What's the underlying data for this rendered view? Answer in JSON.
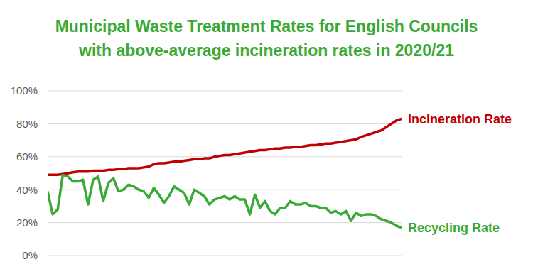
{
  "chart_data": {
    "type": "line",
    "title": "Municipal Waste Treatment Rates for English Councils\nwith above-average incineration rates in 2020/21",
    "categories": [
      null,
      null,
      null,
      null,
      null,
      null,
      null,
      null,
      null,
      null,
      null,
      null,
      null,
      null,
      null,
      null,
      null,
      null,
      null,
      null,
      null,
      null,
      null,
      null,
      null,
      null,
      null,
      null,
      null,
      null,
      null,
      null,
      null,
      null,
      null,
      null,
      null,
      null,
      null,
      null,
      null,
      null,
      null,
      null,
      null,
      null,
      null,
      null,
      null,
      null,
      null,
      null,
      null,
      null,
      null,
      null,
      null,
      null,
      null,
      null,
      null,
      null,
      null,
      null,
      null,
      null,
      null,
      null,
      null,
      null,
      null
    ],
    "series": [
      {
        "name": "Incineration Rate",
        "color": "#c00000",
        "values": [
          49,
          49,
          49,
          49.5,
          50,
          50.5,
          51,
          51,
          51,
          51.5,
          51.5,
          51.5,
          52,
          52,
          52.5,
          52.5,
          53,
          53,
          53,
          53.5,
          54,
          55.5,
          56,
          56,
          56.5,
          57,
          57,
          57.5,
          58,
          58.5,
          58.5,
          59,
          59,
          60,
          60.5,
          61,
          61,
          61.5,
          62,
          62.5,
          63,
          63.5,
          64,
          64,
          64.5,
          65,
          65,
          65.5,
          65.5,
          66,
          66,
          66.5,
          67,
          67,
          67.5,
          68,
          68,
          68.5,
          69,
          69.5,
          70,
          70.5,
          72,
          73,
          74,
          75,
          76,
          78,
          80,
          82,
          83
        ]
      },
      {
        "name": "Recycling Rate",
        "color": "#3aa935",
        "values": [
          39,
          25,
          28,
          49,
          48,
          45,
          45,
          46,
          31,
          46,
          48,
          33,
          44,
          47,
          39,
          40,
          43,
          42,
          40,
          39,
          35,
          41,
          37,
          32,
          36,
          42,
          40,
          38,
          31,
          40,
          38,
          36,
          31,
          34,
          35,
          36,
          34,
          36,
          34,
          34,
          25,
          37,
          29,
          33,
          27,
          25,
          29,
          29,
          33,
          31,
          31,
          32,
          30,
          30,
          29,
          29,
          26,
          27,
          25,
          27,
          21,
          26,
          24,
          25,
          25,
          24,
          22,
          21,
          20,
          18,
          17
        ]
      }
    ],
    "ylim": [
      0,
      100
    ],
    "yticks": [
      {
        "value": 0,
        "label": "0%"
      },
      {
        "value": 20,
        "label": "20%"
      },
      {
        "value": 40,
        "label": "40%"
      },
      {
        "value": 60,
        "label": "60%"
      },
      {
        "value": 80,
        "label": "80%"
      },
      {
        "value": 100,
        "label": "100%"
      }
    ],
    "grid": true,
    "tick_labels": "y"
  }
}
